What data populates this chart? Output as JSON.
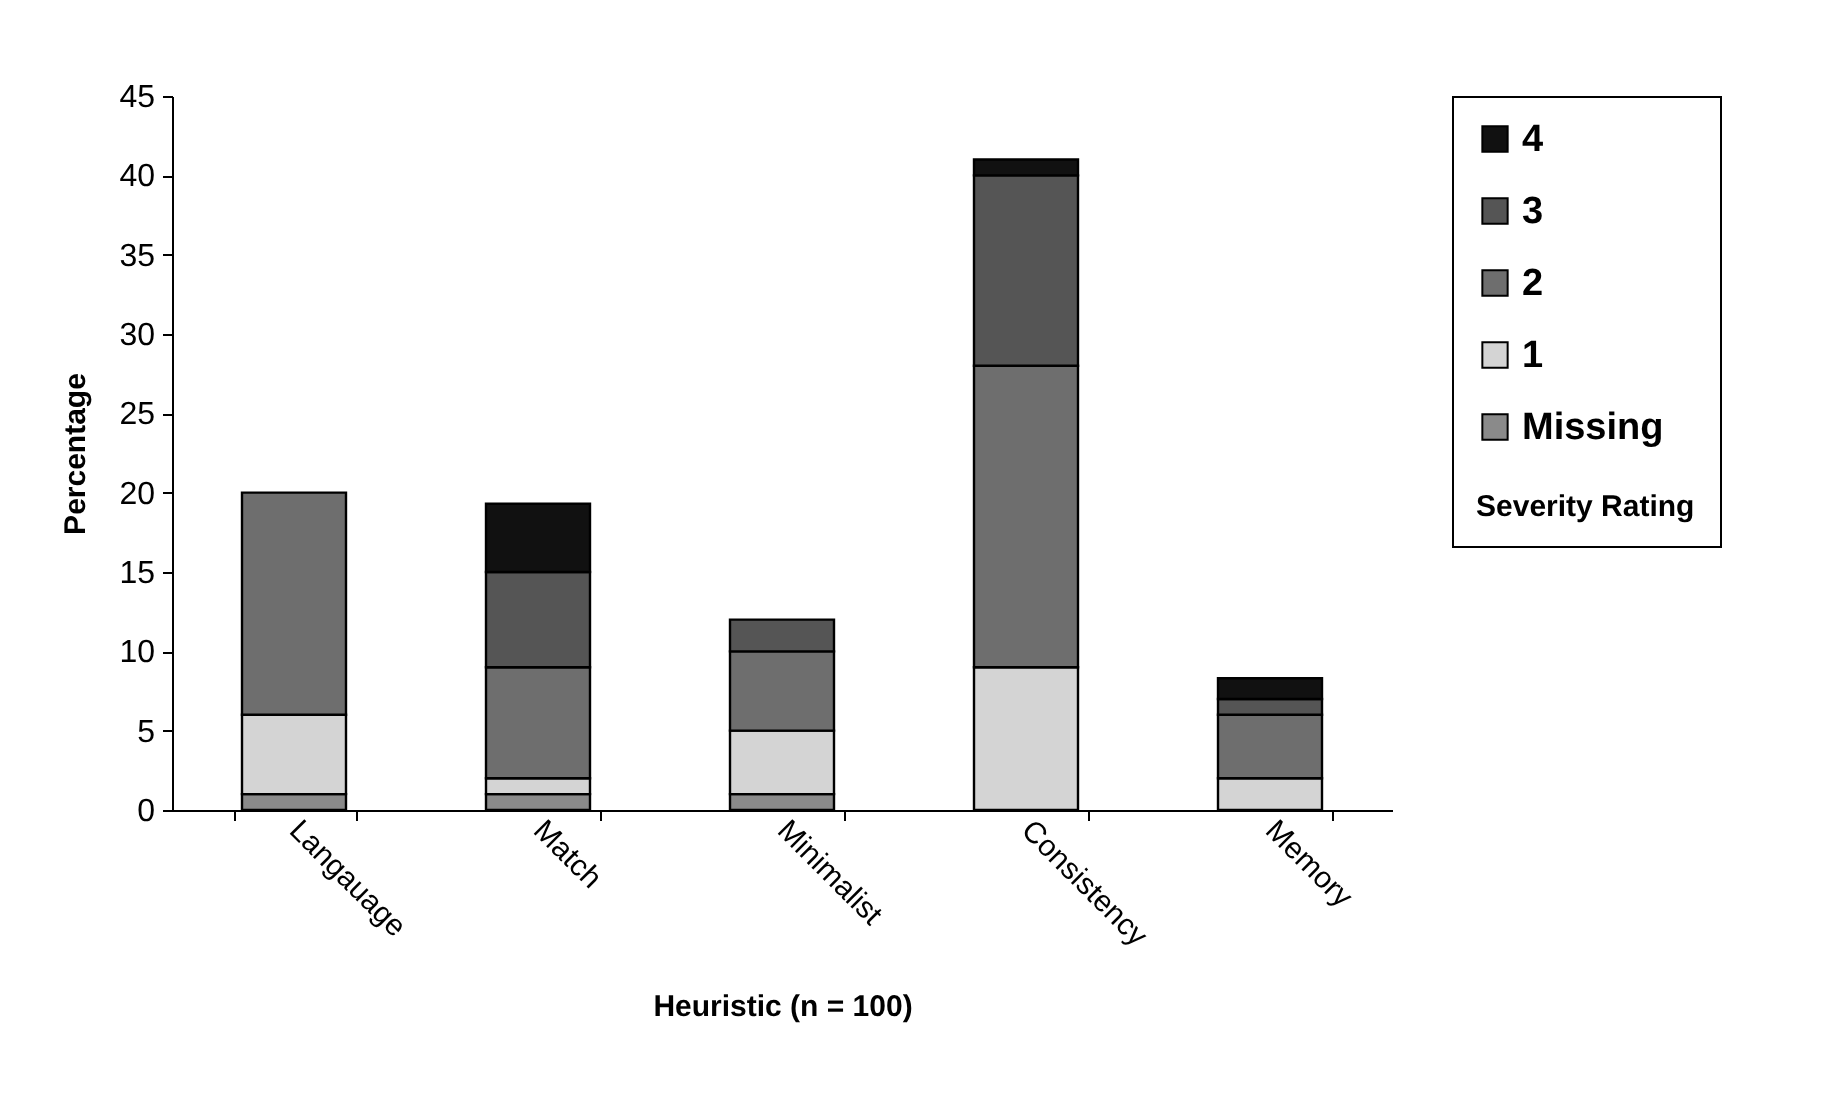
{
  "chart_data": {
    "type": "bar",
    "stacked": true,
    "xlabel": "Heuristic (n = 100)",
    "ylabel": "Percentage",
    "legend_title": "Severity Rating",
    "legend": "right",
    "categories": [
      "Langauage",
      "Match",
      "Minimalist",
      "Consistency",
      "Memory"
    ],
    "series": [
      {
        "name": "Missing",
        "color": "#8a8a8a",
        "values": [
          1,
          1,
          1,
          null,
          null
        ]
      },
      {
        "name": "1",
        "color": "#d4d4d4",
        "values": [
          5,
          1,
          4,
          9,
          2
        ]
      },
      {
        "name": "2",
        "color": "#6e6e6e",
        "values": [
          14,
          7,
          5,
          19,
          4
        ]
      },
      {
        "name": "3",
        "color": "#555555",
        "values": [
          null,
          6,
          2,
          12,
          1
        ]
      },
      {
        "name": "4",
        "color": "#111111",
        "values": [
          null,
          4.3,
          null,
          1,
          1.3
        ]
      }
    ],
    "ylim": [
      0,
      45
    ],
    "yticks": [
      0,
      5,
      10,
      15,
      20,
      25,
      30,
      35,
      40,
      45
    ],
    "grid": false
  }
}
